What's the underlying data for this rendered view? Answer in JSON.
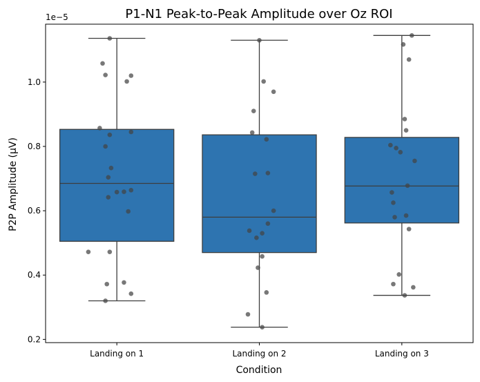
{
  "chart_data": {
    "type": "box",
    "title": "P1-N1 Peak-to-Peak Amplitude over Oz ROI",
    "xlabel": "Condition",
    "ylabel": "P2P Amplitude (µV)",
    "offset_label": "1e−5",
    "ylim": [
      0.19,
      1.18
    ],
    "yticks": [
      0.2,
      0.4,
      0.6,
      0.8,
      1.0
    ],
    "ytick_labels": [
      "0.2",
      "0.4",
      "0.6",
      "0.8",
      "1.0"
    ],
    "grid": false,
    "legend": "none",
    "categories": [
      "Landing on 1",
      "Landing on 2",
      "Landing on 3"
    ],
    "boxes": [
      {
        "category": "Landing on 1",
        "whisker_low": 0.32,
        "q1": 0.505,
        "median": 0.685,
        "q3": 0.853,
        "whisker_high": 1.136
      },
      {
        "category": "Landing on 2",
        "whisker_low": 0.238,
        "q1": 0.47,
        "median": 0.58,
        "q3": 0.836,
        "whisker_high": 1.13
      },
      {
        "category": "Landing on 3",
        "whisker_low": 0.337,
        "q1": 0.562,
        "median": 0.677,
        "q3": 0.828,
        "whisker_high": 1.145
      }
    ],
    "points": [
      [
        1.136,
        1.058,
        1.022,
        1.02,
        1.002,
        0.857,
        0.845,
        0.836,
        0.8,
        0.733,
        0.704,
        0.664,
        0.659,
        0.658,
        0.642,
        0.598,
        0.472,
        0.472,
        0.377,
        0.372,
        0.342,
        0.32
      ],
      [
        1.13,
        1.002,
        0.97,
        0.91,
        0.843,
        0.822,
        0.717,
        0.715,
        0.6,
        0.56,
        0.538,
        0.53,
        0.516,
        0.458,
        0.423,
        0.346,
        0.278,
        0.238
      ],
      [
        1.145,
        1.117,
        1.07,
        0.885,
        0.85,
        0.804,
        0.795,
        0.782,
        0.755,
        0.678,
        0.657,
        0.625,
        0.585,
        0.58,
        0.543,
        0.402,
        0.372,
        0.362,
        0.337
      ]
    ],
    "jitter": [
      [
        -0.05,
        -0.1,
        -0.08,
        0.1,
        0.07,
        -0.12,
        0.1,
        -0.05,
        -0.08,
        -0.04,
        -0.06,
        0.1,
        0.05,
        0.0,
        -0.06,
        0.08,
        -0.2,
        -0.05,
        0.05,
        -0.07,
        0.1,
        -0.08
      ],
      [
        0.0,
        0.03,
        0.1,
        -0.04,
        -0.05,
        0.05,
        0.06,
        -0.03,
        0.1,
        0.06,
        -0.07,
        0.02,
        -0.02,
        0.02,
        -0.01,
        0.05,
        -0.08,
        0.02
      ],
      [
        0.07,
        0.01,
        0.05,
        0.02,
        0.03,
        -0.08,
        -0.04,
        -0.01,
        0.09,
        0.04,
        -0.07,
        -0.06,
        0.03,
        -0.05,
        0.05,
        -0.02,
        -0.06,
        0.08,
        0.02
      ]
    ],
    "colors": {
      "box_fill": "#2e74b0",
      "box_edge": "#3d3d3d",
      "point_fill": "#444444",
      "axis": "#000000"
    }
  }
}
